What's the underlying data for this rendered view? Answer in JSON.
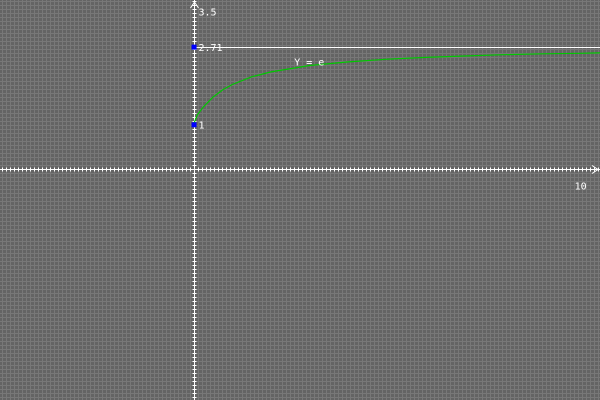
{
  "chart_data": {
    "type": "line",
    "xlim": [
      -5,
      10.5
    ],
    "ylim": [
      -5.1,
      3.75
    ],
    "grid": true,
    "x_ticks": [
      {
        "value": 10,
        "label": "10"
      }
    ],
    "y_ticks": [
      {
        "value": 3.5,
        "label": "3.5"
      },
      {
        "value": 2.71,
        "label": "2.71"
      },
      {
        "value": 1,
        "label": "1"
      }
    ],
    "asymptote": {
      "y": 2.718
    },
    "curve": {
      "label": "Y = e",
      "label_at": {
        "x": 2.6,
        "y": 2.3
      },
      "color": "#00c800",
      "points": [
        {
          "x": 0.0,
          "y": 1.0
        },
        {
          "x": 0.1,
          "y": 1.21
        },
        {
          "x": 0.25,
          "y": 1.38
        },
        {
          "x": 0.5,
          "y": 1.6
        },
        {
          "x": 0.75,
          "y": 1.76
        },
        {
          "x": 1.0,
          "y": 1.88
        },
        {
          "x": 1.5,
          "y": 2.05
        },
        {
          "x": 2.0,
          "y": 2.16
        },
        {
          "x": 3.0,
          "y": 2.3
        },
        {
          "x": 4.0,
          "y": 2.38
        },
        {
          "x": 5.0,
          "y": 2.44
        },
        {
          "x": 6.0,
          "y": 2.48
        },
        {
          "x": 7.0,
          "y": 2.51
        },
        {
          "x": 8.0,
          "y": 2.54
        },
        {
          "x": 9.0,
          "y": 2.56
        },
        {
          "x": 10.0,
          "y": 2.57
        },
        {
          "x": 10.5,
          "y": 2.58
        }
      ]
    },
    "markers": [
      {
        "x": 0,
        "y": 2.718,
        "color": "#0000ff"
      },
      {
        "x": 0,
        "y": 1,
        "color": "#0000ff"
      }
    ],
    "colors": {
      "background": "#646464",
      "grid": "#787878",
      "axis": "#ffffff",
      "asymptote": "#ffffff"
    }
  }
}
